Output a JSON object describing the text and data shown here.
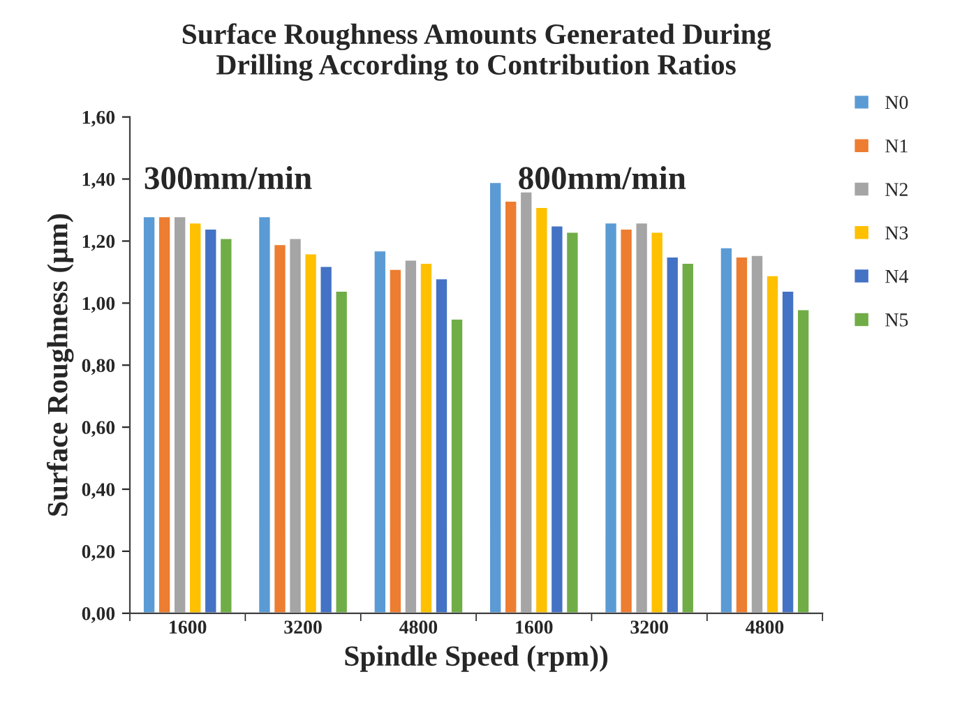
{
  "chart_data": {
    "type": "bar",
    "title": "Surface Roughness Amounts Generated During\nDrilling According to Contribution Ratios",
    "xlabel": "Spindle Speed (rpm))",
    "ylabel": "Surface Roughness (µm)",
    "categories": [
      "1600",
      "3200",
      "4800",
      "1600",
      "3200",
      "4800"
    ],
    "series": [
      {
        "name": "N0",
        "color": "#5b9bd5",
        "values": [
          1.28,
          1.28,
          1.17,
          1.39,
          1.26,
          1.18
        ]
      },
      {
        "name": "N1",
        "color": "#ed7d31",
        "values": [
          1.28,
          1.19,
          1.11,
          1.33,
          1.24,
          1.15
        ]
      },
      {
        "name": "N2",
        "color": "#a5a5a5",
        "values": [
          1.28,
          1.21,
          1.14,
          1.36,
          1.26,
          1.155
        ]
      },
      {
        "name": "N3",
        "color": "#ffc000",
        "values": [
          1.26,
          1.16,
          1.13,
          1.31,
          1.23,
          1.09
        ]
      },
      {
        "name": "N4",
        "color": "#4472c4",
        "values": [
          1.24,
          1.12,
          1.08,
          1.25,
          1.15,
          1.04
        ]
      },
      {
        "name": "N5",
        "color": "#70ad47",
        "values": [
          1.21,
          1.04,
          0.95,
          1.23,
          1.13,
          0.98
        ]
      }
    ],
    "ylim": [
      0,
      1.6
    ],
    "yticks": [
      {
        "value": 0,
        "label": "0,00"
      },
      {
        "value": 0.2,
        "label": "0,20"
      },
      {
        "value": 0.4,
        "label": "0,40"
      },
      {
        "value": 0.6,
        "label": "0,60"
      },
      {
        "value": 0.8,
        "label": "0,80"
      },
      {
        "value": 1.0,
        "label": "1,00"
      },
      {
        "value": 1.2,
        "label": "1,20"
      },
      {
        "value": 1.4,
        "label": "1,40"
      },
      {
        "value": 1.6,
        "label": "1,60"
      }
    ],
    "annotations": [
      "300mm/min",
      "800mm/min"
    ],
    "grid": false,
    "legend": "right"
  }
}
